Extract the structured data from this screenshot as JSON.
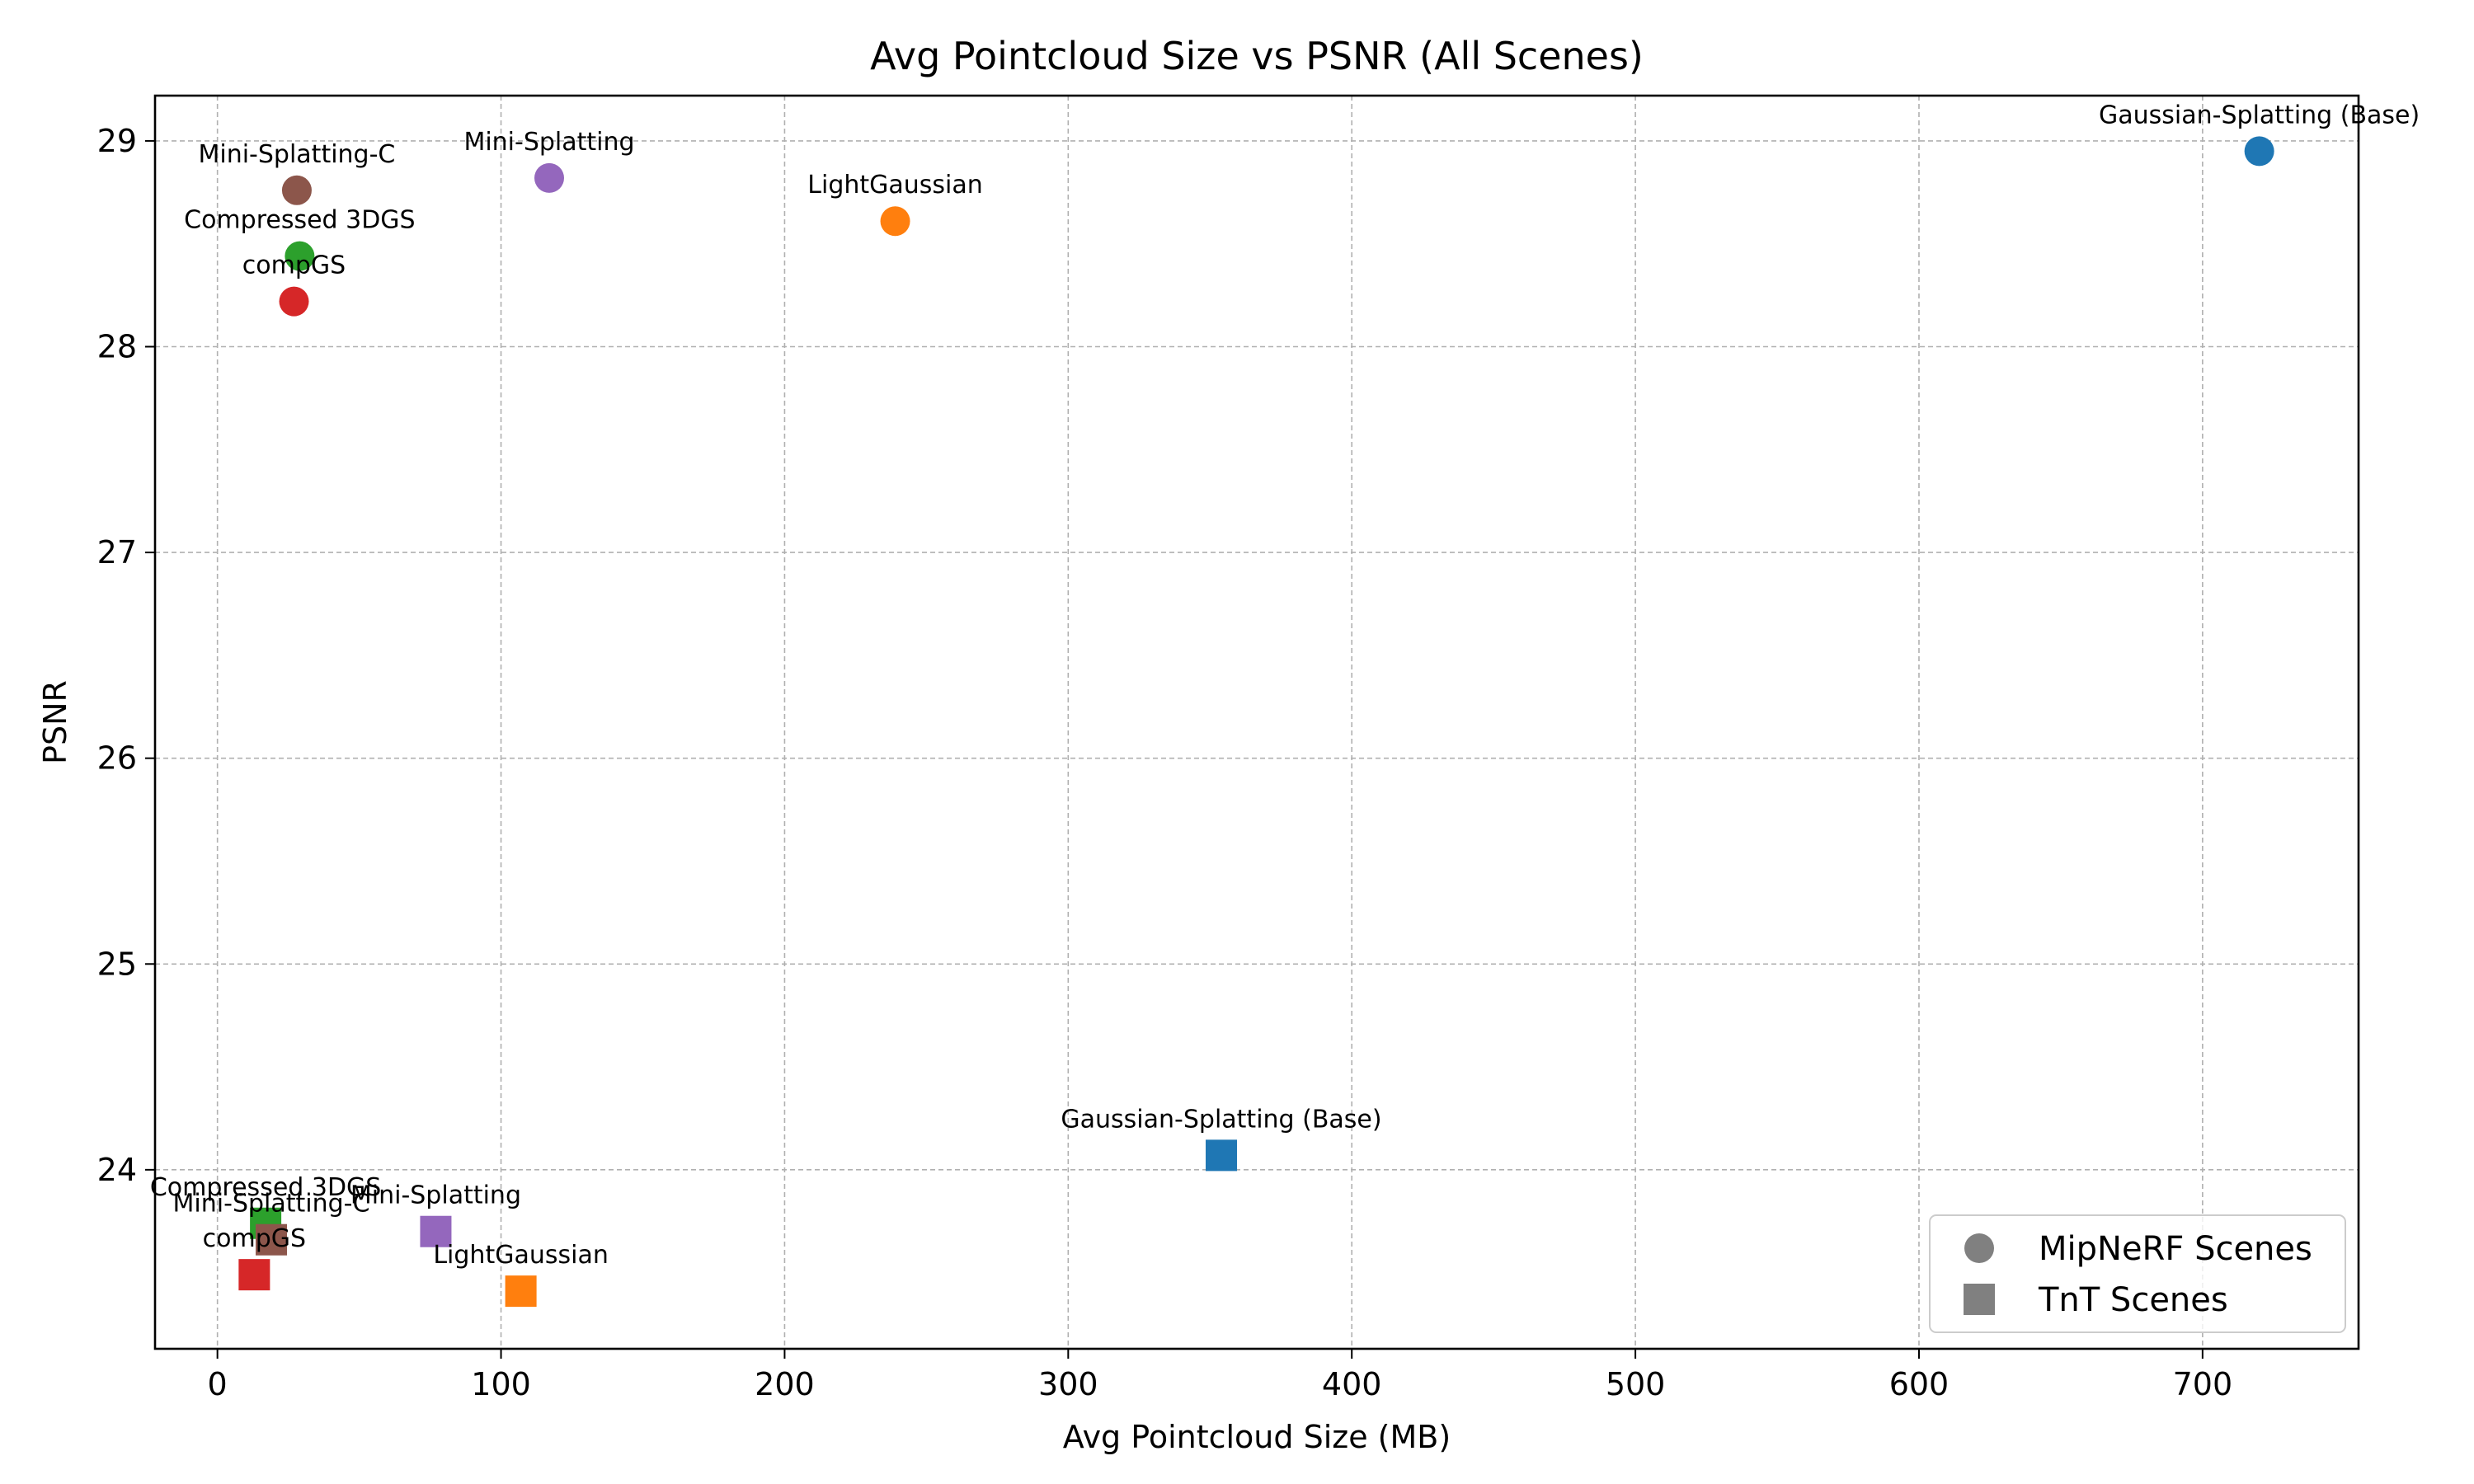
{
  "chart_data": {
    "type": "scatter",
    "title": "Avg Pointcloud Size vs PSNR (All Scenes)",
    "xlabel": "Avg Pointcloud Size (MB)",
    "ylabel": "PSNR",
    "xlim": [
      -22,
      755
    ],
    "ylim": [
      23.13,
      29.22
    ],
    "xticks": [
      0,
      100,
      200,
      300,
      400,
      500,
      600,
      700
    ],
    "yticks": [
      24,
      25,
      26,
      27,
      28,
      29
    ],
    "grid": true,
    "legend_position": "bottom-right",
    "legend": [
      {
        "label": "MipNeRF Scenes",
        "marker": "circle"
      },
      {
        "label": "TnT Scenes",
        "marker": "square"
      }
    ],
    "series": [
      {
        "name": "MipNeRF Scenes",
        "marker": "circle",
        "points": [
          {
            "label": "Gaussian-Splatting (Base)",
            "x": 720,
            "y": 28.95,
            "color": "#1f77b4"
          },
          {
            "label": "LightGaussian",
            "x": 239,
            "y": 28.61,
            "color": "#ff7f0e"
          },
          {
            "label": "Compressed 3DGS",
            "x": 29,
            "y": 28.44,
            "color": "#2ca02c"
          },
          {
            "label": "compGS",
            "x": 27,
            "y": 28.22,
            "color": "#d62728"
          },
          {
            "label": "Mini-Splatting",
            "x": 117,
            "y": 28.82,
            "color": "#9467bd"
          },
          {
            "label": "Mini-Splatting-C",
            "x": 28,
            "y": 28.76,
            "color": "#8c564b"
          }
        ]
      },
      {
        "name": "TnT Scenes",
        "marker": "square",
        "points": [
          {
            "label": "Gaussian-Splatting (Base)",
            "x": 354,
            "y": 24.07,
            "color": "#1f77b4"
          },
          {
            "label": "LightGaussian",
            "x": 107,
            "y": 23.41,
            "color": "#ff7f0e"
          },
          {
            "label": "Compressed 3DGS",
            "x": 17,
            "y": 23.74,
            "color": "#2ca02c"
          },
          {
            "label": "compGS",
            "x": 13,
            "y": 23.49,
            "color": "#d62728"
          },
          {
            "label": "Mini-Splatting",
            "x": 77,
            "y": 23.7,
            "color": "#9467bd"
          },
          {
            "label": "Mini-Splatting-C",
            "x": 19,
            "y": 23.66,
            "color": "#8c564b"
          }
        ]
      }
    ]
  }
}
